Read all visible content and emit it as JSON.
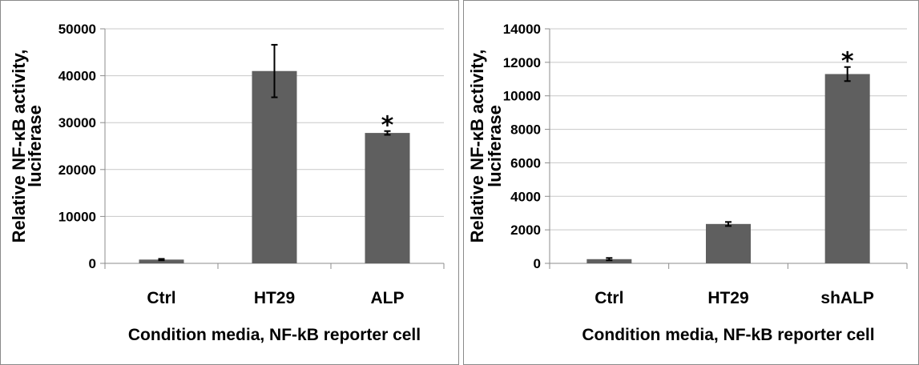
{
  "chart_data": [
    {
      "type": "bar",
      "categories": [
        "Ctrl",
        "HT29",
        "ALP"
      ],
      "values": [
        800,
        41000,
        27800
      ],
      "errors": [
        150,
        5600,
        400
      ],
      "significance": [
        "",
        "",
        "*"
      ],
      "ylabel_line1": "Relative NF-κB activity,",
      "ylabel_line2": "luciferase",
      "xlabel": "Condition media, NF-kB reporter cell",
      "ylim": [
        0,
        50000
      ],
      "yticks": [
        "0",
        "10000",
        "20000",
        "30000",
        "40000",
        "50000"
      ],
      "grid": true,
      "bar_color": "#5f5f5f"
    },
    {
      "type": "bar",
      "categories": [
        "Ctrl",
        "HT29",
        "shALP"
      ],
      "values": [
        250,
        2350,
        11300
      ],
      "errors": [
        70,
        120,
        420
      ],
      "significance": [
        "",
        "",
        "*"
      ],
      "ylabel_line1": "Relative NF-κB activity,",
      "ylabel_line2": "luciferase",
      "xlabel": "Condition media, NF-kB reporter cell",
      "ylim": [
        0,
        14000
      ],
      "yticks": [
        "0",
        "2000",
        "4000",
        "6000",
        "8000",
        "10000",
        "12000",
        "14000"
      ],
      "grid": true,
      "bar_color": "#5f5f5f"
    }
  ]
}
